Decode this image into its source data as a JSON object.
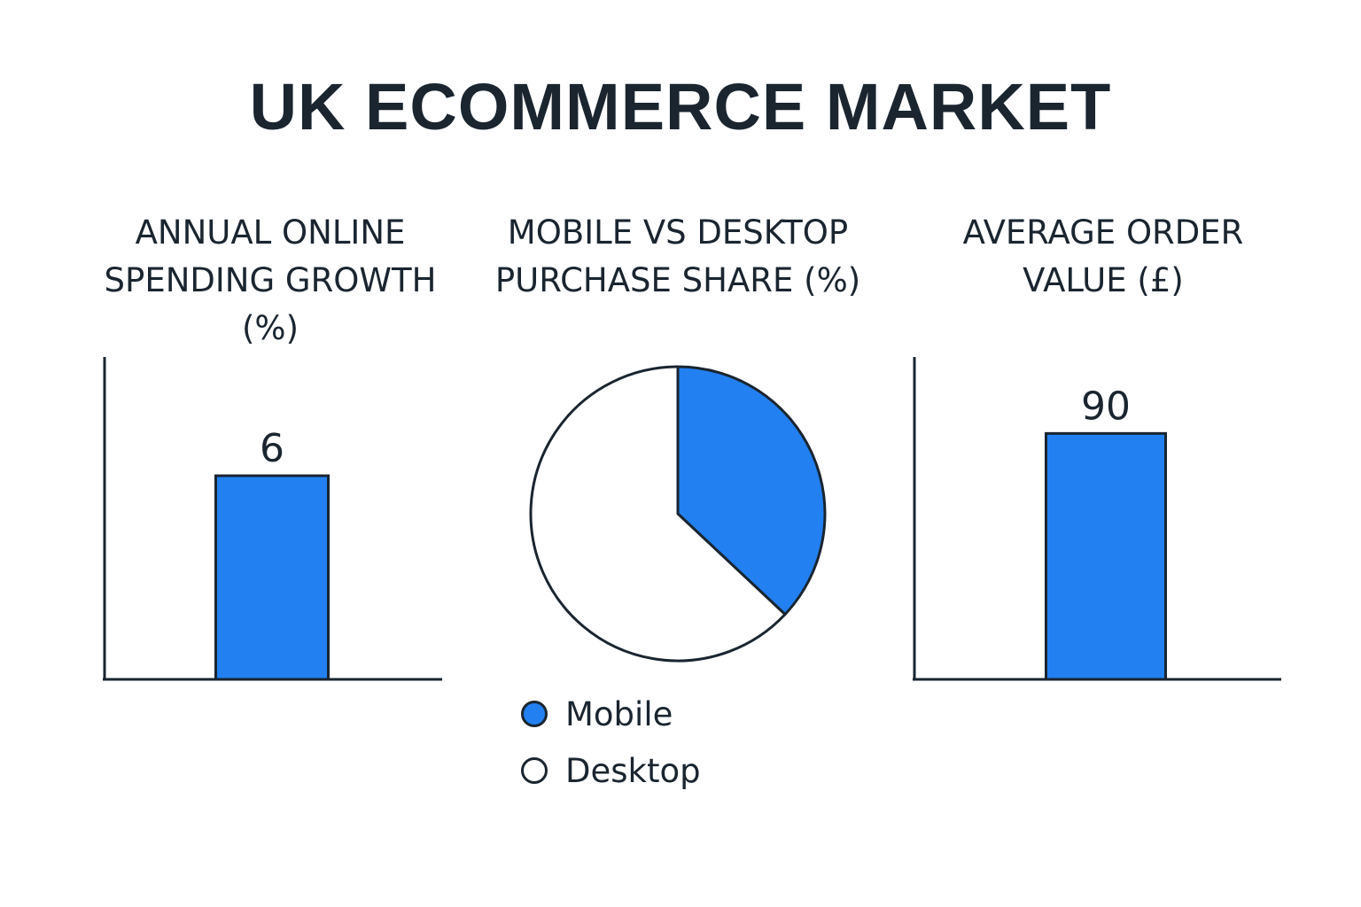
{
  "title": "UK ECOMMERCE MARKET",
  "colors": {
    "accent": "#2280f0",
    "ink": "#1a2530",
    "background": "#ffffff"
  },
  "chart_data": [
    {
      "type": "bar",
      "title": "ANNUAL ONLINE\nSPENDING GROWTH\n(%)",
      "categories": [
        ""
      ],
      "values": [
        6
      ],
      "data_labels": [
        "6"
      ],
      "ylim": [
        0,
        9.5
      ]
    },
    {
      "type": "pie",
      "title": "MOBILE VS DESKTOP\nPURCHASE SHARE (%)",
      "labels": [
        "Mobile",
        "Desktop"
      ],
      "values": [
        37,
        63
      ],
      "colors": [
        "#2280f0",
        "#ffffff"
      ],
      "legend": "bottom"
    },
    {
      "type": "bar",
      "title": "AVERAGE ORDER\nVALUE (£)",
      "categories": [
        ""
      ],
      "values": [
        90
      ],
      "data_labels": [
        "90"
      ],
      "ylim": [
        0,
        118
      ]
    }
  ]
}
